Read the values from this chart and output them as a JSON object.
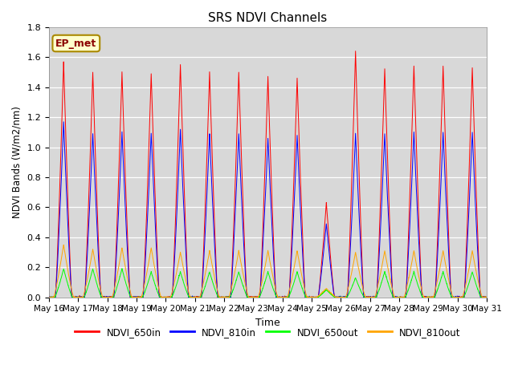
{
  "title": "SRS NDVI Channels",
  "xlabel": "Time",
  "ylabel": "NDVI Bands (W/m2/nm)",
  "annotation": "EP_met",
  "ylim": [
    0.0,
    1.8
  ],
  "xlim_start": 0,
  "xlim_end": 15,
  "bg_color": "#d8d8d8",
  "fig_color": "#ffffff",
  "legend_entries": [
    "NDVI_650in",
    "NDVI_810in",
    "NDVI_650out",
    "NDVI_810out"
  ],
  "legend_colors": [
    "red",
    "blue",
    "lime",
    "orange"
  ],
  "tick_labels": [
    "May 16",
    "May 17",
    "May 18",
    "May 19",
    "May 20",
    "May 21",
    "May 22",
    "May 23",
    "May 24",
    "May 25",
    "May 26",
    "May 27",
    "May 28",
    "May 29",
    "May 30",
    "May 31"
  ],
  "peak_650in": [
    1.57,
    1.5,
    1.5,
    1.49,
    1.55,
    1.5,
    1.5,
    1.47,
    1.46,
    0.63,
    1.64,
    1.52,
    1.54,
    1.54,
    1.53
  ],
  "peak_810in": [
    1.17,
    1.09,
    1.1,
    1.09,
    1.12,
    1.09,
    1.09,
    1.06,
    1.08,
    0.49,
    1.09,
    1.09,
    1.1,
    1.1,
    1.1
  ],
  "peak_650out": [
    0.19,
    0.19,
    0.19,
    0.17,
    0.17,
    0.17,
    0.17,
    0.17,
    0.17,
    0.05,
    0.13,
    0.17,
    0.17,
    0.17,
    0.17
  ],
  "peak_810out": [
    0.35,
    0.32,
    0.33,
    0.33,
    0.3,
    0.31,
    0.31,
    0.31,
    0.31,
    0.06,
    0.3,
    0.31,
    0.31,
    0.31,
    0.31
  ],
  "n_days": 15,
  "pts_per_day": 200
}
